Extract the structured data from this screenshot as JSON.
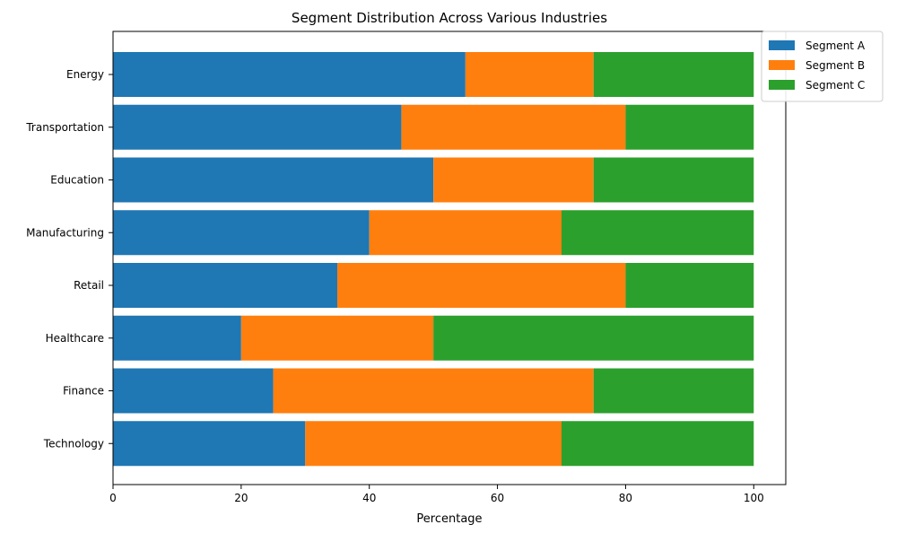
{
  "chart_data": {
    "type": "bar",
    "orientation": "horizontal",
    "stacked": true,
    "title": "Segment Distribution Across Various Industries",
    "xlabel": "Percentage",
    "ylabel": "",
    "xlim": [
      0,
      105
    ],
    "xticks": [
      0,
      20,
      40,
      60,
      80,
      100
    ],
    "grid": false,
    "legend_position": "top-right",
    "categories": [
      "Technology",
      "Finance",
      "Healthcare",
      "Retail",
      "Manufacturing",
      "Education",
      "Transportation",
      "Energy"
    ],
    "series": [
      {
        "name": "Segment A",
        "color": "#1f77b4",
        "values": [
          30,
          25,
          20,
          35,
          40,
          50,
          45,
          55
        ]
      },
      {
        "name": "Segment B",
        "color": "#ff7f0e",
        "values": [
          40,
          50,
          30,
          45,
          30,
          25,
          35,
          20
        ]
      },
      {
        "name": "Segment C",
        "color": "#2ca02c",
        "values": [
          30,
          25,
          50,
          20,
          30,
          25,
          20,
          25
        ]
      }
    ]
  }
}
